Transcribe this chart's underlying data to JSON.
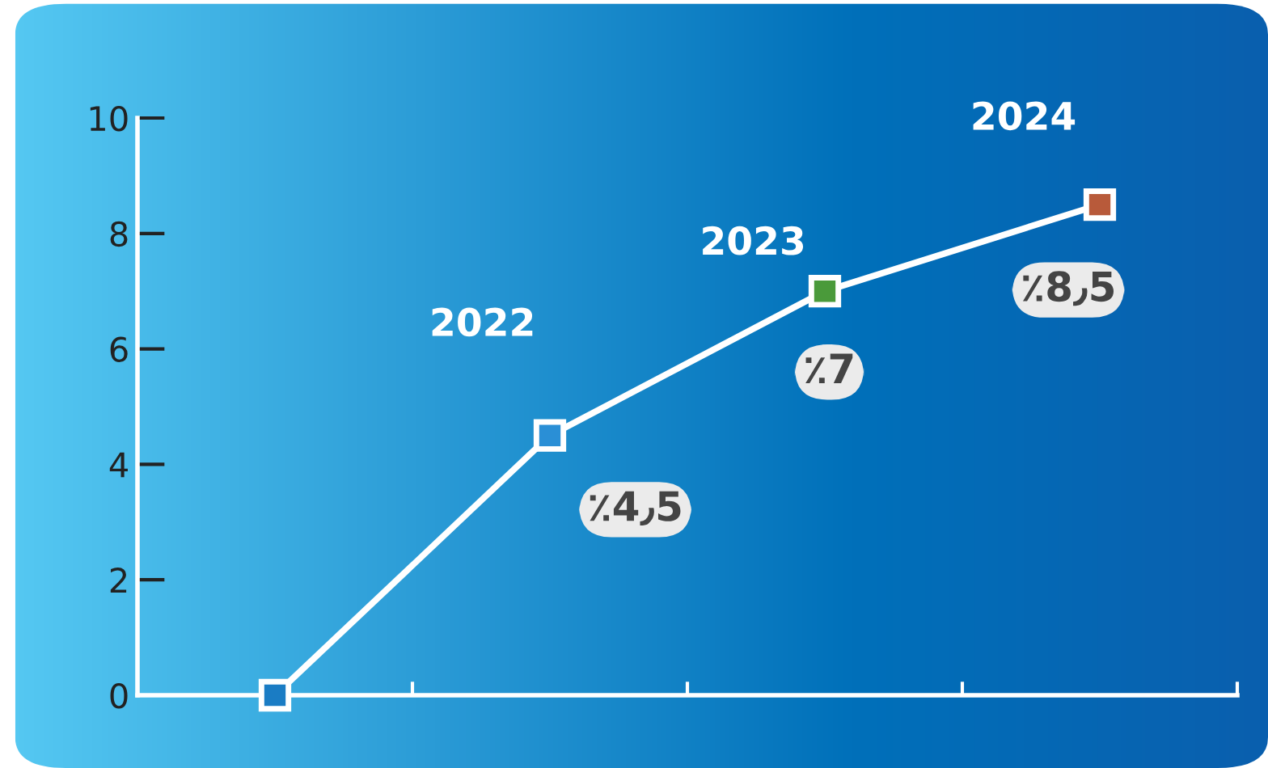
{
  "chart_data": {
    "type": "line",
    "categories": [
      null,
      "2022",
      "2023",
      "2024"
    ],
    "series": [
      {
        "color": "#ffffff",
        "values": [
          0,
          4.5,
          7,
          8.5
        ],
        "colors": [
          "#1a7cc4",
          "#2a8fd6",
          "#4a9a3a",
          "#b85a3a"
        ],
        "value_labels": [
          null,
          "٪4٫5",
          "٪7",
          "٪8٫5"
        ]
      }
    ],
    "ylim": [
      0,
      10
    ],
    "yticks": [
      0,
      2,
      4,
      6,
      8,
      10
    ],
    "tick_labels": "y",
    "marker": "square",
    "line_style": "solid",
    "grid": false,
    "legend": false
  }
}
